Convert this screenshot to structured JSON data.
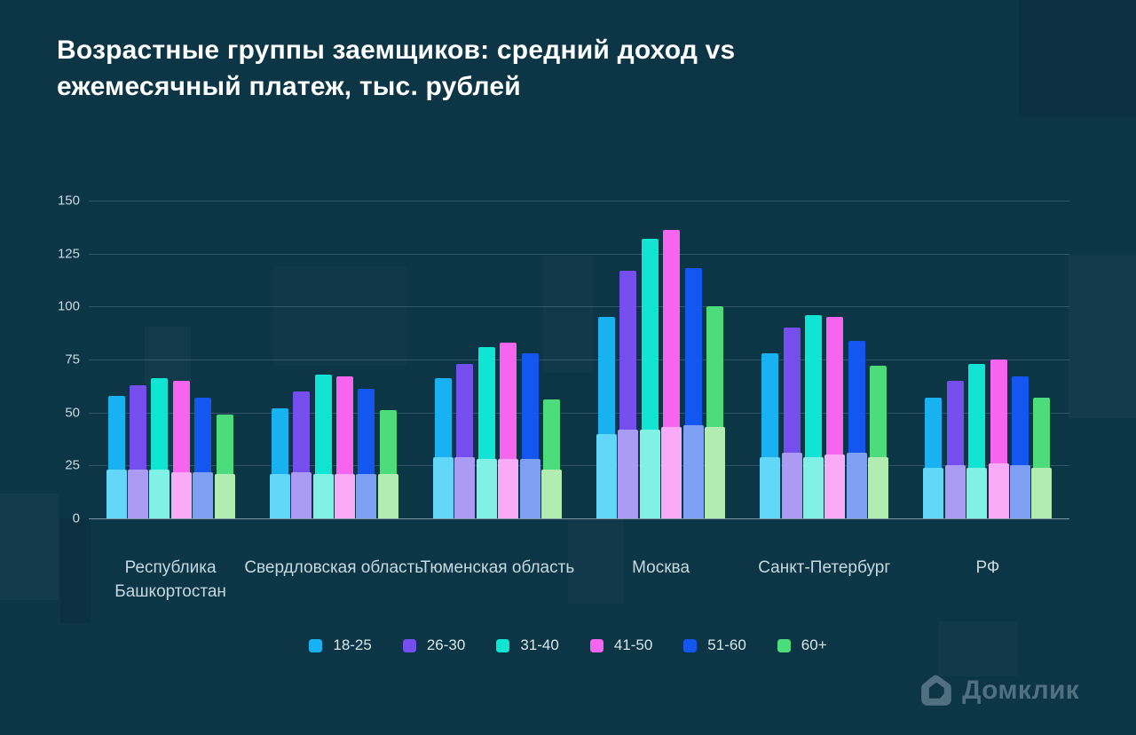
{
  "title": {
    "line1": "Возрастные группы заемщиков: средний доход vs",
    "line2": "ежемесячный платеж, тыс. рублей"
  },
  "brand": {
    "name": "Домклик",
    "logo_color": "#51707F"
  },
  "background_color": "#0C3546",
  "chart_data": {
    "type": "bar",
    "title": "Возрастные группы заемщиков: средний доход vs ежемесячный платеж, тыс. рублей",
    "unit": "тыс. рублей",
    "grid": true,
    "legend_position": "bottom",
    "categories": [
      "Республика Башкортостан",
      "Свердловская область",
      "Тюменская область",
      "Москва",
      "Санкт-Петербург",
      "РФ"
    ],
    "yticks": [
      0,
      25,
      50,
      75,
      100,
      125,
      150
    ],
    "ylim": [
      0,
      150
    ],
    "series_semantics": {
      "income": "средний доход (полная высота, насыщенный цвет)",
      "payment": "ежемесячный платеж (нижний светлый сегмент)"
    },
    "series": [
      {
        "name": "18-25",
        "color": "#18B1F2",
        "light_color": "#63D7F8",
        "income": [
          58,
          52,
          66,
          95,
          78,
          57
        ],
        "payment": [
          23,
          21,
          29,
          40,
          29,
          24
        ]
      },
      {
        "name": "26-30",
        "color": "#744FEE",
        "light_color": "#AB9BF3",
        "income": [
          63,
          60,
          73,
          117,
          90,
          65
        ],
        "payment": [
          23,
          22,
          29,
          42,
          31,
          25
        ]
      },
      {
        "name": "31-40",
        "color": "#10E4D3",
        "light_color": "#81F0E5",
        "income": [
          66,
          68,
          81,
          132,
          96,
          73
        ],
        "payment": [
          23,
          21,
          28,
          42,
          29,
          24
        ]
      },
      {
        "name": "41-50",
        "color": "#F765EE",
        "light_color": "#FAABF7",
        "income": [
          65,
          67,
          83,
          136,
          95,
          75
        ],
        "payment": [
          22,
          21,
          28,
          43,
          30,
          26
        ]
      },
      {
        "name": "51-60",
        "color": "#1356F0",
        "light_color": "#7FA0F2",
        "income": [
          57,
          61,
          78,
          118,
          84,
          67
        ],
        "payment": [
          22,
          21,
          28,
          44,
          31,
          25
        ]
      },
      {
        "name": "60+",
        "color": "#4CDC7C",
        "light_color": "#B2ECB0",
        "income": [
          49,
          51,
          56,
          100,
          72,
          57
        ],
        "payment": [
          21,
          21,
          23,
          43,
          29,
          24
        ]
      }
    ]
  }
}
